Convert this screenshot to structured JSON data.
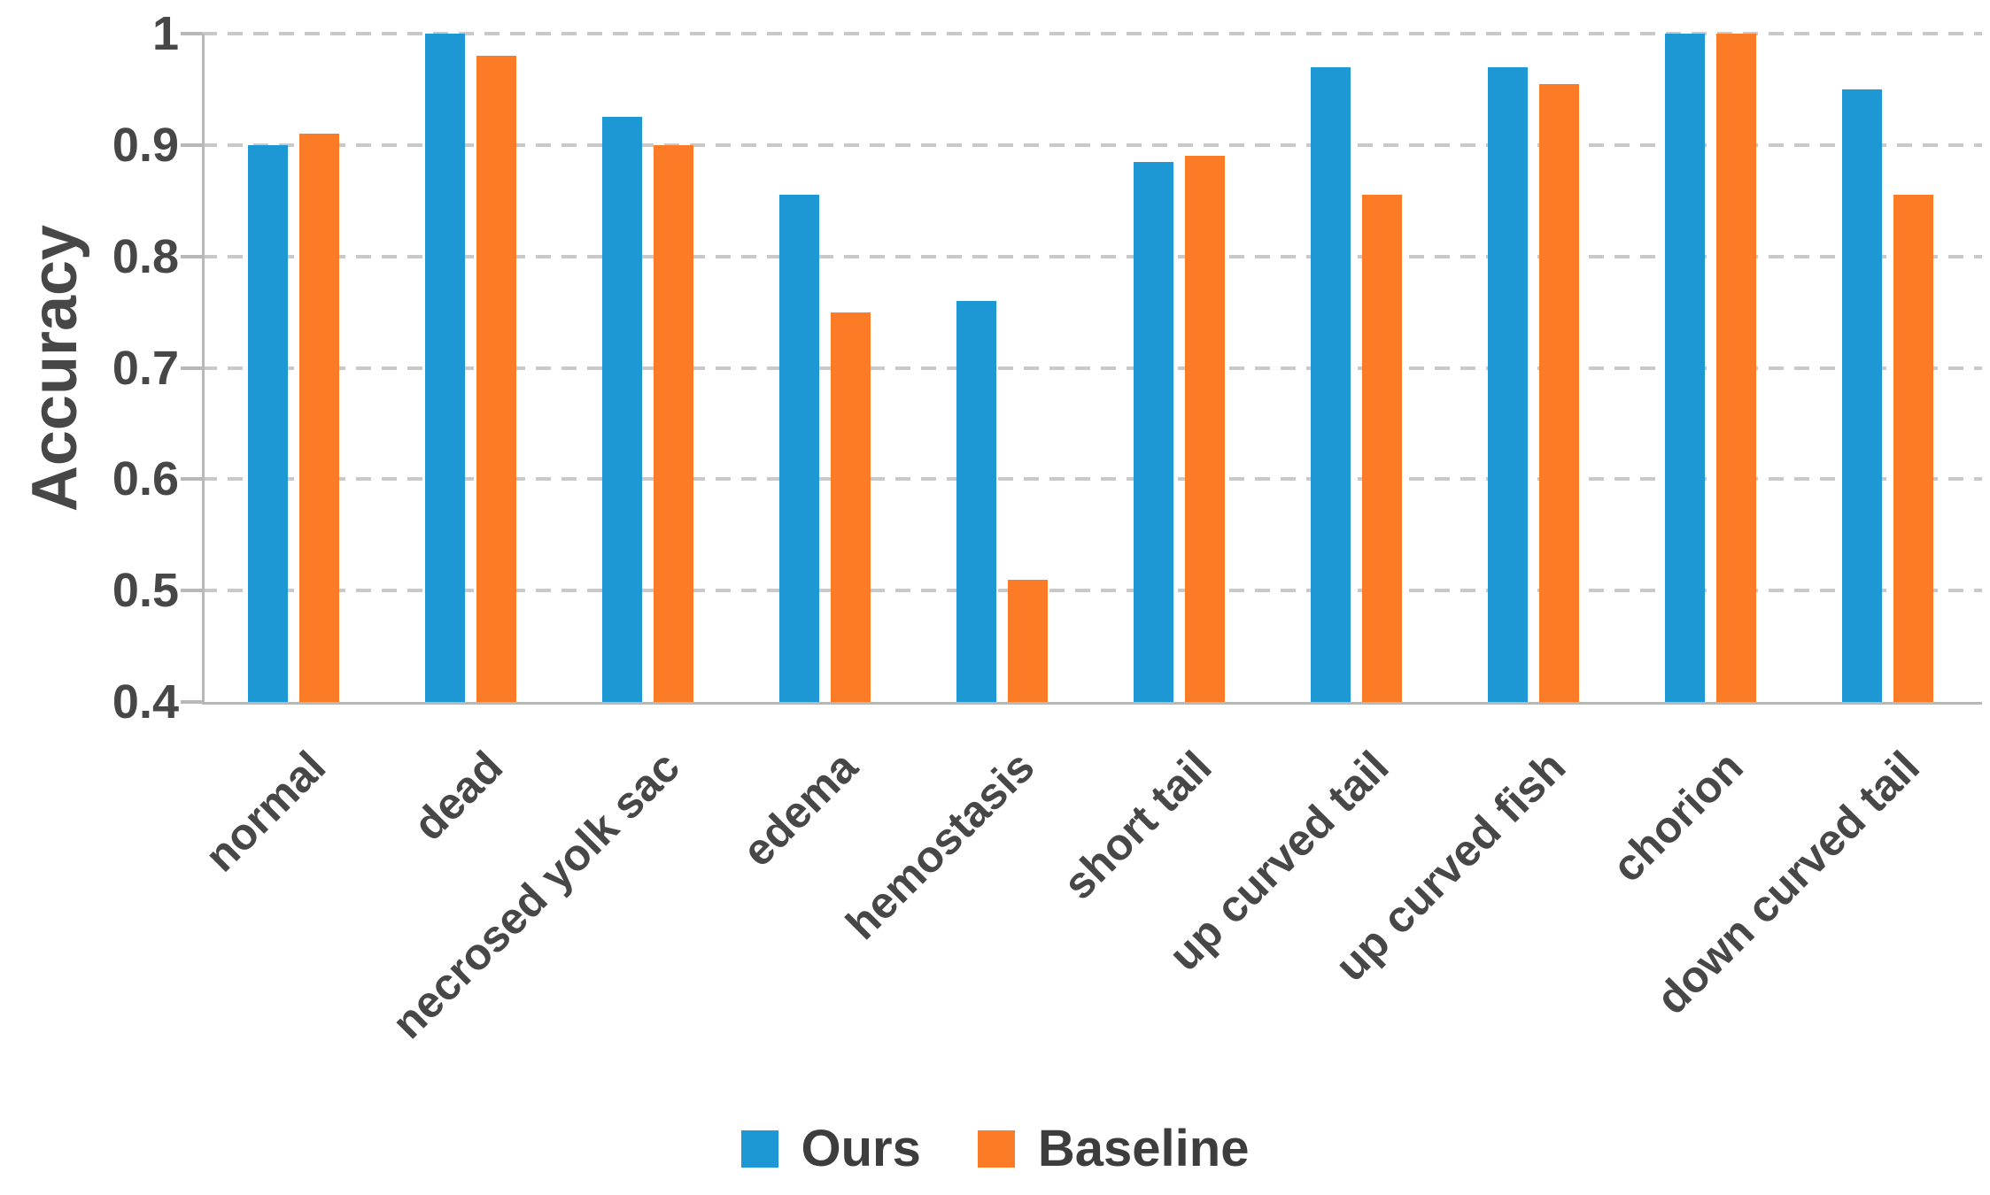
{
  "chart_data": {
    "type": "bar",
    "title": "",
    "xlabel": "",
    "ylabel": "Accuracy",
    "ylim": [
      0.4,
      1.0
    ],
    "grid": "horizontal dashed",
    "legend_position": "bottom center",
    "yticks": [
      {
        "label": "1",
        "value": 1.0
      },
      {
        "label": "0.9",
        "value": 0.9
      },
      {
        "label": "0.8",
        "value": 0.8
      },
      {
        "label": "0.7",
        "value": 0.7
      },
      {
        "label": "0.6",
        "value": 0.6
      },
      {
        "label": "0.5",
        "value": 0.5
      },
      {
        "label": "0.4",
        "value": 0.4
      }
    ],
    "categories": [
      "normal",
      "dead",
      "necrosed yolk sac",
      "edema",
      "hemostasis",
      "short tail",
      "up curved tail",
      "up curved fish",
      "chorion",
      "down curved tail"
    ],
    "series": [
      {
        "name": "Ours",
        "color": "#1E98D4",
        "values": [
          0.9,
          1.0,
          0.925,
          0.855,
          0.76,
          0.885,
          0.97,
          0.97,
          1.0,
          0.95
        ]
      },
      {
        "name": "Baseline",
        "color": "#FB7B26",
        "values": [
          0.91,
          0.98,
          0.9,
          0.75,
          0.51,
          0.89,
          0.855,
          0.955,
          1.0,
          0.855
        ]
      }
    ]
  },
  "style_colors": {
    "grid": "#C9C9C9",
    "axis": "#B8B8B8",
    "tick_text": "#474747",
    "legend_text": "#3D3D3D"
  }
}
